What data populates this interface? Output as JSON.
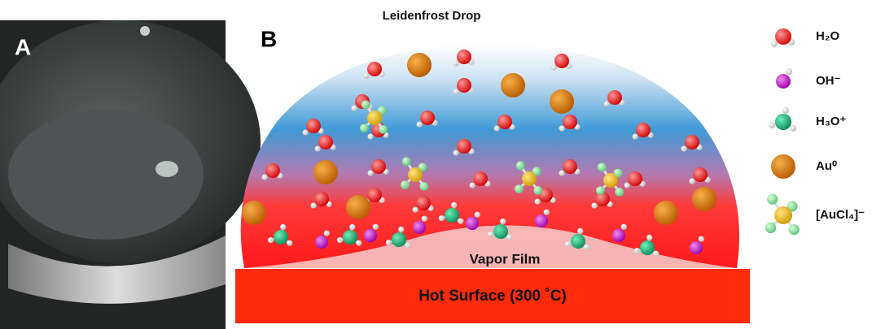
{
  "panel_a": {
    "label": "A"
  },
  "panel_b": {
    "label": "B",
    "title": "Leidenfrost Drop",
    "vapor_film": "Vapor Film",
    "hot_surface": "Hot Surface (300 ˚C)"
  },
  "legend": [
    {
      "label": "H₂O"
    },
    {
      "label": "OH⁻"
    },
    {
      "label": "H₃O⁺"
    },
    {
      "label": "Au⁰"
    },
    {
      "label": "[AuCl₄]⁻"
    }
  ]
}
